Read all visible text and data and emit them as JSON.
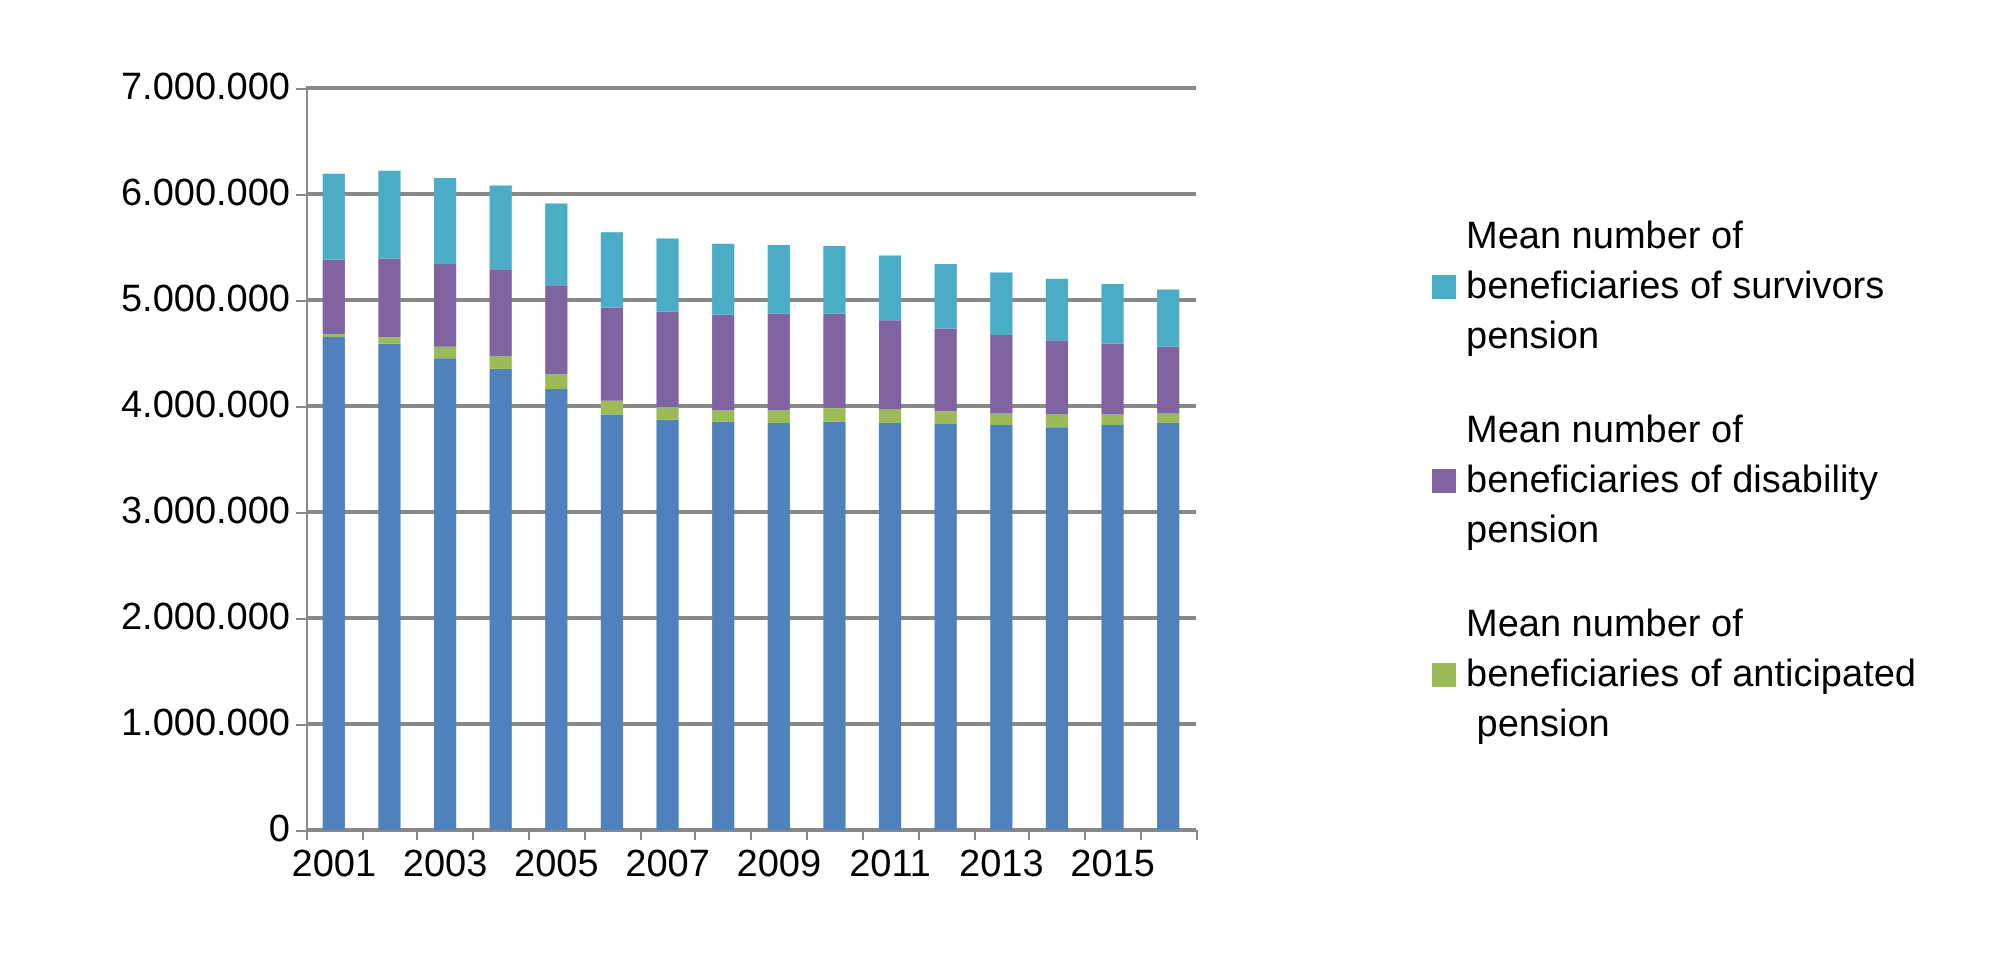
{
  "chart_data": {
    "type": "bar",
    "stacked": true,
    "categories": [
      "2001",
      null,
      "2003",
      null,
      "2005",
      null,
      "2007",
      null,
      "2009",
      null,
      "2011",
      null,
      "2013",
      null,
      "2015",
      null
    ],
    "series": [
      {
        "color": "#4f81bd",
        "values": [
          4650000,
          4590000,
          4450000,
          4350000,
          4160000,
          3920000,
          3870000,
          3850000,
          3840000,
          3850000,
          3840000,
          3830000,
          3820000,
          3800000,
          3820000,
          3840000
        ]
      },
      {
        "name": "Mean number of beneficiaries of anticipated pension",
        "color": "#9bbb59",
        "values": [
          30000,
          60000,
          110000,
          120000,
          140000,
          130000,
          120000,
          110000,
          120000,
          130000,
          130000,
          120000,
          110000,
          120000,
          100000,
          90000
        ]
      },
      {
        "name": "Mean number of beneficiaries of disability pension",
        "color": "#8064a2",
        "values": [
          700000,
          740000,
          780000,
          820000,
          840000,
          880000,
          900000,
          900000,
          910000,
          890000,
          840000,
          780000,
          740000,
          700000,
          670000,
          630000
        ]
      },
      {
        "name": "Mean number of beneficiaries of survivors pension",
        "color": "#4bacc6",
        "values": [
          810000,
          830000,
          810000,
          790000,
          770000,
          710000,
          690000,
          670000,
          650000,
          640000,
          610000,
          610000,
          590000,
          580000,
          560000,
          540000
        ]
      }
    ],
    "ylim": [
      0,
      7000000
    ],
    "yticks": [
      0,
      {
        "value": 1000000,
        "label": "1.000.000"
      },
      {
        "value": 2000000,
        "label": "2.000.000"
      },
      {
        "value": 3000000,
        "label": "3.000.000"
      },
      {
        "value": 4000000,
        "label": "4.000.000"
      },
      {
        "value": 5000000,
        "label": "5.000.000"
      },
      {
        "value": 6000000,
        "label": "6.000.000"
      },
      {
        "value": 7000000,
        "label": "7.000.000"
      }
    ],
    "grid": "y",
    "legend": "right"
  }
}
